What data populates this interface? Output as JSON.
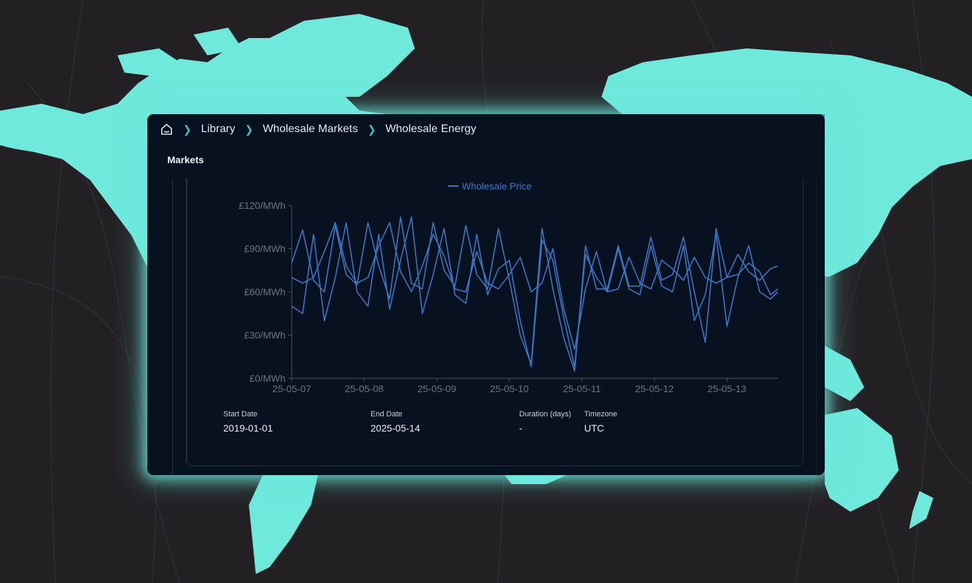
{
  "breadcrumb": {
    "home_icon": "home-icon",
    "separator_icon": "chevron-right-icon",
    "items": [
      "Library",
      "Wholesale Markets",
      "Wholesale Energy"
    ]
  },
  "section": {
    "title": "Markets"
  },
  "chart_data": {
    "type": "line",
    "legend": [
      "Wholesale Price"
    ],
    "legend_position": "top-center",
    "ylim": [
      0,
      120
    ],
    "y_ticks": [
      "£0/MWh",
      "£30/MWh",
      "£60/MWh",
      "£90/MWh",
      "£120/MWh"
    ],
    "y_tick_values": [
      0,
      30,
      60,
      90,
      120
    ],
    "x_ticks": [
      "25-05-07",
      "25-05-08",
      "25-05-09",
      "25-05-10",
      "25-05-11",
      "25-05-12",
      "25-05-13"
    ],
    "xlim_days": [
      0,
      6.7
    ],
    "grid": false,
    "line_color": "#3a78c9",
    "series": [
      {
        "name": "Wholesale Price",
        "x": [
          0,
          0.15,
          0.3,
          0.45,
          0.6,
          0.75,
          0.9,
          1.05,
          1.2,
          1.35,
          1.5,
          1.65,
          1.8,
          1.95,
          2.1,
          2.25,
          2.4,
          2.55,
          2.7,
          2.85,
          3.0,
          3.15,
          3.3,
          3.45,
          3.6,
          3.75,
          3.9,
          4.05,
          4.2,
          4.35,
          4.5,
          4.65,
          4.8,
          4.95,
          5.1,
          5.25,
          5.4,
          5.55,
          5.7,
          5.85,
          6.0,
          6.15,
          6.3,
          6.45,
          6.6,
          6.7
        ],
        "values": [
          80,
          103,
          68,
          60,
          106,
          72,
          65,
          108,
          78,
          55,
          112,
          66,
          62,
          108,
          75,
          64,
          106,
          72,
          62,
          104,
          68,
          30,
          10,
          104,
          62,
          28,
          5,
          92,
          62,
          62,
          92,
          64,
          64,
          98,
          68,
          72,
          98,
          60,
          25,
          104,
          70,
          72,
          80,
          74,
          58,
          62
        ]
      },
      {
        "name": "Wholesale Price",
        "x": [
          0,
          0.15,
          0.3,
          0.45,
          0.6,
          0.75,
          0.9,
          1.05,
          1.2,
          1.35,
          1.5,
          1.65,
          1.8,
          1.95,
          2.1,
          2.25,
          2.4,
          2.55,
          2.7,
          2.85,
          3.0,
          3.15,
          3.3,
          3.45,
          3.6,
          3.75,
          3.9,
          4.05,
          4.2,
          4.35,
          4.5,
          4.65,
          4.8,
          4.95,
          5.1,
          5.25,
          5.4,
          5.55,
          5.7,
          5.85,
          6.0,
          6.15,
          6.3,
          6.45,
          6.6,
          6.7
        ],
        "values": [
          50,
          45,
          100,
          40,
          70,
          108,
          60,
          50,
          100,
          48,
          82,
          112,
          45,
          72,
          104,
          58,
          52,
          100,
          58,
          76,
          82,
          40,
          8,
          96,
          82,
          42,
          8,
          86,
          70,
          60,
          90,
          62,
          58,
          92,
          64,
          60,
          92,
          40,
          58,
          100,
          36,
          70,
          92,
          60,
          55,
          60
        ]
      },
      {
        "name": "Wholesale Price",
        "x": [
          0,
          0.15,
          0.3,
          0.45,
          0.6,
          0.75,
          0.9,
          1.05,
          1.2,
          1.35,
          1.5,
          1.65,
          1.8,
          1.95,
          2.1,
          2.25,
          2.4,
          2.55,
          2.7,
          2.85,
          3.0,
          3.15,
          3.3,
          3.45,
          3.6,
          3.75,
          3.9,
          4.05,
          4.2,
          4.35,
          4.5,
          4.65,
          4.8,
          4.95,
          5.1,
          5.25,
          5.4,
          5.55,
          5.7,
          5.85,
          6.0,
          6.15,
          6.3,
          6.45,
          6.6,
          6.7
        ],
        "values": [
          70,
          66,
          70,
          88,
          108,
          78,
          66,
          70,
          92,
          108,
          74,
          60,
          78,
          100,
          85,
          62,
          60,
          88,
          66,
          62,
          72,
          84,
          60,
          66,
          90,
          48,
          20,
          62,
          88,
          60,
          62,
          84,
          66,
          62,
          82,
          76,
          68,
          84,
          70,
          66,
          70,
          86,
          74,
          68,
          76,
          78
        ]
      }
    ]
  },
  "meta": [
    {
      "label": "Start Date",
      "value": "2019-01-01"
    },
    {
      "label": "End Date",
      "value": "2025-05-14"
    },
    {
      "label": "Duration (days)",
      "value": "-"
    },
    {
      "label": "Timezone",
      "value": "UTC"
    }
  ],
  "colors": {
    "background": "#232024",
    "map_land": "#6ee9dc",
    "panel": "#07111f",
    "accent": "#3fc7c0",
    "series_line": "#3a78c9"
  }
}
